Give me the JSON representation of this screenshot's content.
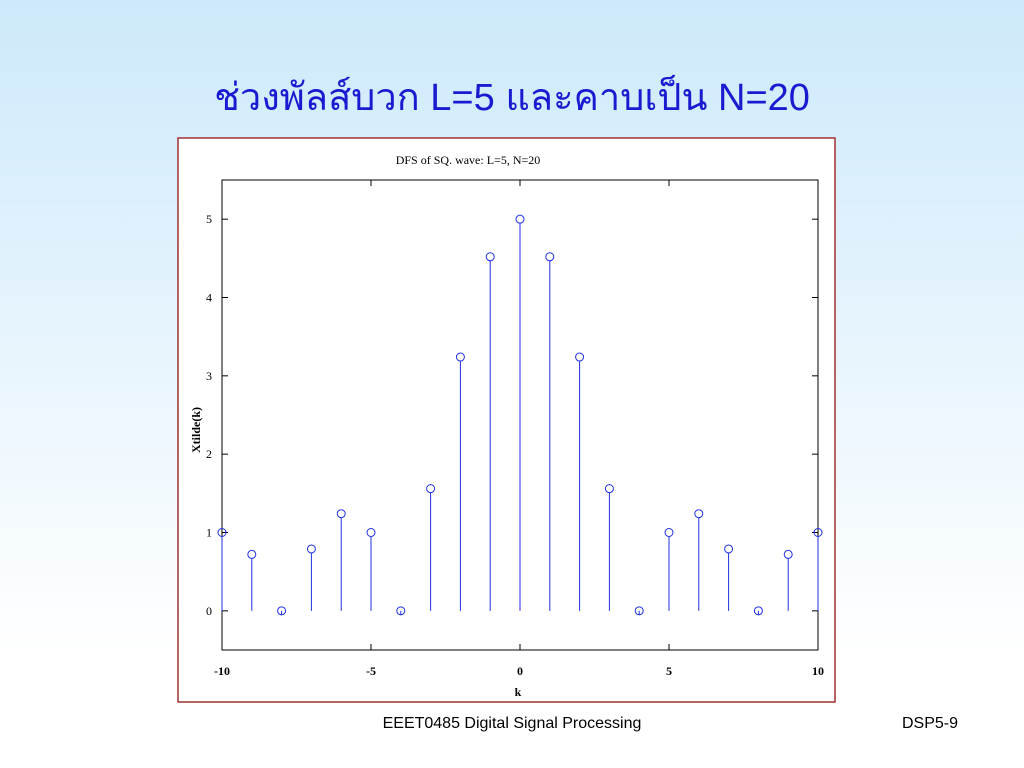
{
  "slide": {
    "title": "ช่วงพัลส์บวก L=5 และคาบเป็น N=20",
    "footer_left": "EEET0485 Digital Signal Processing",
    "footer_right": "DSP5-9"
  },
  "chart_data": {
    "type": "stem",
    "title": "DFS of SQ. wave: L=5, N=20",
    "x_label": "k",
    "y_label": "Xtilde(k)",
    "x": [
      -10,
      -9,
      -8,
      -7,
      -6,
      -5,
      -4,
      -3,
      -2,
      -1,
      0,
      1,
      2,
      3,
      4,
      5,
      6,
      7,
      8,
      9,
      10
    ],
    "values": [
      1,
      0.72,
      0,
      0.79,
      1.24,
      1,
      0,
      1.56,
      3.24,
      4.52,
      5,
      4.52,
      3.24,
      1.56,
      0,
      1,
      1.24,
      0.79,
      0,
      0.72,
      1
    ],
    "color": "#2030e0",
    "xlim": [
      -10,
      10
    ],
    "xticks": [
      -10,
      -5,
      0,
      5,
      10
    ],
    "ylim": [
      -0.5,
      5.5
    ],
    "yticks": [
      0,
      1,
      2,
      3,
      4,
      5
    ]
  }
}
